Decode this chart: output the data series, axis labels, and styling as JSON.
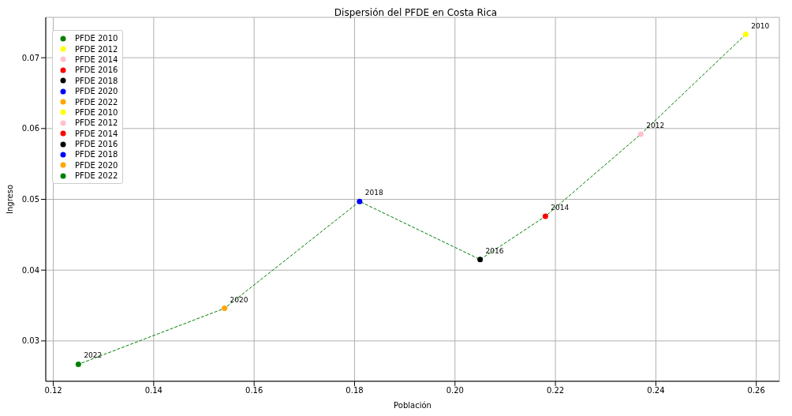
{
  "chart_data": {
    "type": "scatter",
    "title": "Dispersión del PFDE en Costa Rica",
    "xlabel": "Población",
    "ylabel": "Ingreso",
    "xlim": [
      0.1185,
      0.2646
    ],
    "ylim": [
      0.0243,
      0.0757
    ],
    "xticks": [
      0.12,
      0.14,
      0.16,
      0.18,
      {
        "value": 0.2,
        "label": "0.20"
      },
      0.22,
      0.24,
      0.26
    ],
    "yticks": [
      0.03,
      0.04,
      0.05,
      0.06,
      0.07
    ],
    "grid": true,
    "legend": "top left",
    "marker": "circle",
    "series": [
      {
        "type": "line",
        "color": "#008000",
        "line_style": "dashed",
        "marker": "none",
        "x": [
          0.2579,
          0.237,
          0.218,
          0.205,
          0.181,
          0.1541,
          0.125
        ],
        "values": [
          0.0733,
          0.0592,
          0.0476,
          0.0415,
          0.0497,
          0.0346,
          0.0267
        ]
      },
      {
        "name": "PFDE 2010",
        "color": "#008000"
      },
      {
        "name": "PFDE 2012",
        "color": "#ffff00"
      },
      {
        "name": "PFDE 2014",
        "color": "#ffc0cb"
      },
      {
        "name": "PFDE 2016",
        "color": "#ff0000"
      },
      {
        "name": "PFDE 2018",
        "color": "#000000"
      },
      {
        "name": "PFDE 2020",
        "color": "#0000ff"
      },
      {
        "name": "PFDE 2022",
        "color": "#ffa500"
      },
      {
        "name": "PFDE 2010",
        "color": "#ffff00",
        "x": [
          0.2579
        ],
        "values": [
          0.0733
        ]
      },
      {
        "name": "PFDE 2012",
        "color": "#ffc0cb",
        "x": [
          0.237
        ],
        "values": [
          0.0592
        ]
      },
      {
        "name": "PFDE 2014",
        "color": "#ff0000",
        "x": [
          0.218
        ],
        "values": [
          0.0476
        ]
      },
      {
        "name": "PFDE 2016",
        "color": "#000000",
        "x": [
          0.205
        ],
        "values": [
          0.0415
        ]
      },
      {
        "name": "PFDE 2018",
        "color": "#0000ff",
        "x": [
          0.181
        ],
        "values": [
          0.0497
        ]
      },
      {
        "name": "PFDE 2020",
        "color": "#ffa500",
        "x": [
          0.1541
        ],
        "values": [
          0.0346
        ]
      },
      {
        "name": "PFDE 2022",
        "color": "#008000",
        "x": [
          0.125
        ],
        "values": [
          0.0267
        ]
      }
    ],
    "annotations": [
      {
        "text": "2010",
        "x": 0.2579,
        "y": 0.0733
      },
      {
        "text": "2012",
        "x": 0.237,
        "y": 0.0592
      },
      {
        "text": "2014",
        "x": 0.218,
        "y": 0.0476
      },
      {
        "text": "2016",
        "x": 0.205,
        "y": 0.0415
      },
      {
        "text": "2018",
        "x": 0.181,
        "y": 0.0497
      },
      {
        "text": "2020",
        "x": 0.1541,
        "y": 0.0346
      },
      {
        "text": "2022",
        "x": 0.125,
        "y": 0.0267
      }
    ]
  }
}
